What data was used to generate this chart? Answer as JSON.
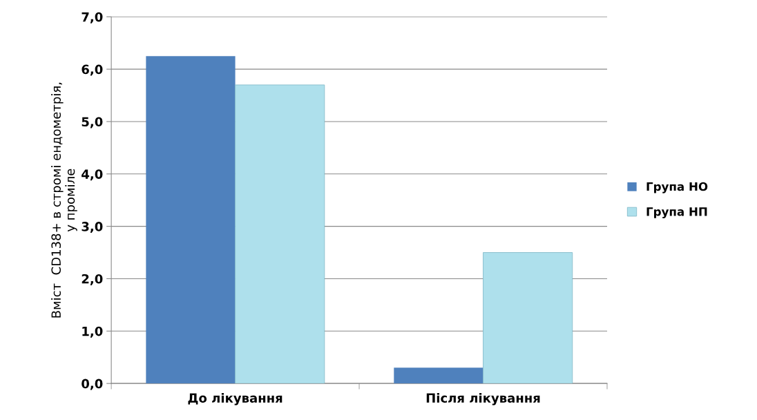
{
  "chart_data": {
    "type": "bar",
    "ylabel": "Вміст  CD138+ в стромі ендометрія,\nу проміле",
    "categories": [
      "До лікування",
      "Після лікування"
    ],
    "series": [
      {
        "name": "Група НО",
        "color": "#4f81bd",
        "values": [
          6.25,
          0.3
        ]
      },
      {
        "name": "Група НП",
        "color": "#aee0ec",
        "values": [
          5.7,
          2.5
        ]
      }
    ],
    "ylim": [
      0,
      7
    ],
    "yticks": [
      {
        "value": 0,
        "label": "0,0"
      },
      {
        "value": 1,
        "label": "1,0"
      },
      {
        "value": 2,
        "label": "2,0"
      },
      {
        "value": 3,
        "label": "3,0"
      },
      {
        "value": 4,
        "label": "4,0"
      },
      {
        "value": 5,
        "label": "5,0"
      },
      {
        "value": 6,
        "label": "6,0"
      },
      {
        "value": 7,
        "label": "7,0"
      }
    ],
    "grid": "y",
    "legend": "right"
  }
}
